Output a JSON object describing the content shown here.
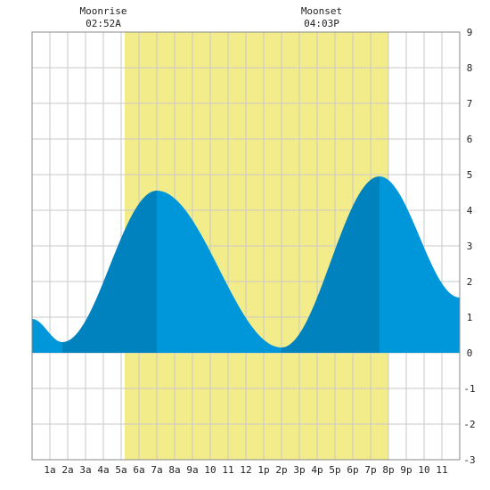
{
  "chart_data": {
    "type": "area",
    "title": "",
    "xlabel": "",
    "ylabel": "",
    "xlim": [
      0,
      24
    ],
    "ylim": [
      -3,
      9
    ],
    "x_ticks": [
      {
        "x": 1,
        "label": "1a"
      },
      {
        "x": 2,
        "label": "2a"
      },
      {
        "x": 3,
        "label": "3a"
      },
      {
        "x": 4,
        "label": "4a"
      },
      {
        "x": 5,
        "label": "5a"
      },
      {
        "x": 6,
        "label": "6a"
      },
      {
        "x": 7,
        "label": "7a"
      },
      {
        "x": 8,
        "label": "8a"
      },
      {
        "x": 9,
        "label": "9a"
      },
      {
        "x": 10,
        "label": "10"
      },
      {
        "x": 11,
        "label": "11"
      },
      {
        "x": 12,
        "label": "12"
      },
      {
        "x": 13,
        "label": "1p"
      },
      {
        "x": 14,
        "label": "2p"
      },
      {
        "x": 15,
        "label": "3p"
      },
      {
        "x": 16,
        "label": "4p"
      },
      {
        "x": 17,
        "label": "5p"
      },
      {
        "x": 18,
        "label": "6p"
      },
      {
        "x": 19,
        "label": "7p"
      },
      {
        "x": 20,
        "label": "8p"
      },
      {
        "x": 21,
        "label": "9p"
      },
      {
        "x": 22,
        "label": "10"
      },
      {
        "x": 23,
        "label": "11"
      }
    ],
    "y_ticks": [
      -3,
      -2,
      -1,
      0,
      1,
      2,
      3,
      4,
      5,
      6,
      7,
      8,
      9
    ],
    "grid": true,
    "daylight": {
      "start": 5.2,
      "end": 20.0,
      "color": "#f3ec8a"
    },
    "tide_extremes": [
      {
        "time": 1.7,
        "height": 0.3,
        "type": "low"
      },
      {
        "time": 7.0,
        "height": 4.55,
        "type": "high"
      },
      {
        "time": 14.0,
        "height": 0.15,
        "type": "low"
      },
      {
        "time": 19.5,
        "height": 4.95,
        "type": "high"
      }
    ],
    "series": [
      {
        "x": [
          0,
          24
        ],
        "values": [
          0.95,
          1.55
        ]
      }
    ],
    "colors": {
      "rising": "#0082bf",
      "falling": "#0096da",
      "grid": "#c8c8c8",
      "background": "#ffffff"
    },
    "annotations": [
      {
        "title": "Moonrise",
        "time_label": "02:52A",
        "x": 4.0
      },
      {
        "title": "Moonset",
        "time_label": "04:03P",
        "x": 16.25
      }
    ]
  }
}
